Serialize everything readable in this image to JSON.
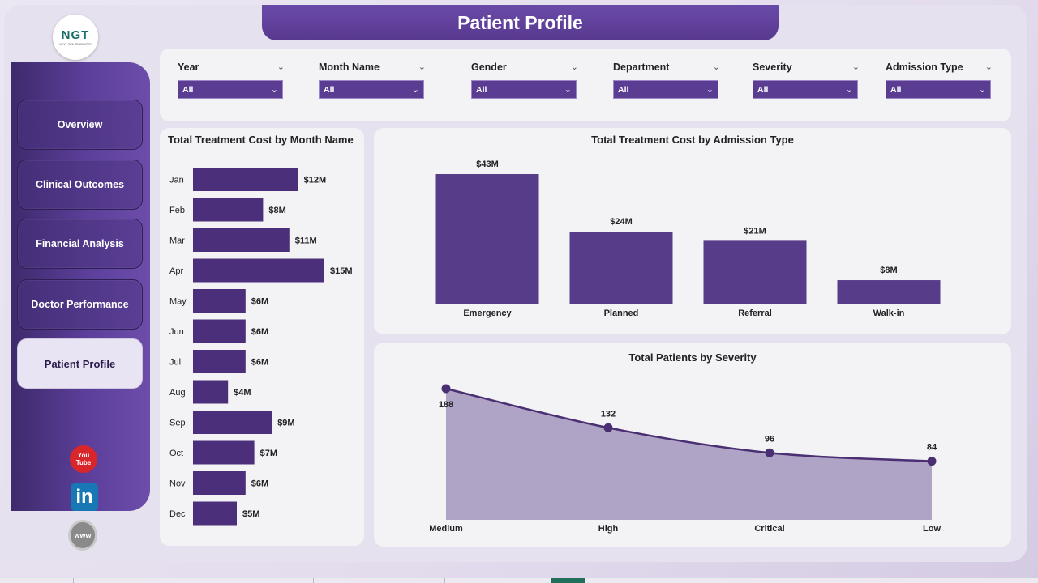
{
  "header": {
    "title": "Patient Profile"
  },
  "logo": {
    "text": "NGT",
    "subtext": "NEXT GEN TEMPLATES"
  },
  "sidebar": {
    "items": [
      {
        "label": "Overview",
        "active": false
      },
      {
        "label": "Clinical Outcomes",
        "active": false
      },
      {
        "label": "Financial Analysis",
        "active": false
      },
      {
        "label": "Doctor Performance",
        "active": false
      },
      {
        "label": "Patient Profile",
        "active": true
      }
    ],
    "social": {
      "youtube_top": "You",
      "youtube_bottom": "Tube",
      "linkedin": "in",
      "web": "www"
    }
  },
  "filters": [
    {
      "label": "Year",
      "value": "All"
    },
    {
      "label": "Month Name",
      "value": "All"
    },
    {
      "label": "Gender",
      "value": "All"
    },
    {
      "label": "Department",
      "value": "All"
    },
    {
      "label": "Severity",
      "value": "All"
    },
    {
      "label": "Admission Type",
      "value": "All"
    }
  ],
  "chart_data": [
    {
      "type": "bar",
      "orientation": "horizontal",
      "title": "Total Treatment Cost by Month Name",
      "categories": [
        "Jan",
        "Feb",
        "Mar",
        "Apr",
        "May",
        "Jun",
        "Jul",
        "Aug",
        "Sep",
        "Oct",
        "Nov",
        "Dec"
      ],
      "values": [
        12,
        8,
        11,
        15,
        6,
        6,
        6,
        4,
        9,
        7,
        6,
        5
      ],
      "labels": [
        "$12M",
        "$8M",
        "$11M",
        "$15M",
        "$6M",
        "$6M",
        "$6M",
        "$4M",
        "$9M",
        "$7M",
        "$6M",
        "$5M"
      ],
      "unit": "$M",
      "color": "#4b2f7a",
      "grid": false
    },
    {
      "type": "bar",
      "title": "Total Treatment Cost by Admission Type",
      "categories": [
        "Emergency",
        "Planned",
        "Referral",
        "Walk-in"
      ],
      "values": [
        43,
        24,
        21,
        8
      ],
      "labels": [
        "$43M",
        "$24M",
        "$21M",
        "$8M"
      ],
      "unit": "$M",
      "color": "#573c89",
      "grid": false
    },
    {
      "type": "area",
      "title": "Total Patients by Severity",
      "categories": [
        "Medium",
        "High",
        "Critical",
        "Low"
      ],
      "values": [
        188,
        132,
        96,
        84
      ],
      "labels": [
        "188",
        "132",
        "96",
        "84"
      ],
      "line_color": "#4a2f72",
      "fill_color": "#b0a4c6",
      "grid": false
    }
  ]
}
